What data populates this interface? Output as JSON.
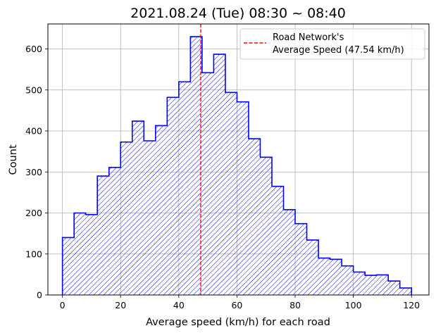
{
  "chart_data": {
    "type": "histogram",
    "title": "2021.08.24 (Tue) 08:30 ~ 08:40",
    "xlabel": "Average speed (km/h) for each road",
    "ylabel": "Count",
    "xlim": [
      -5,
      126
    ],
    "ylim": [
      0,
      661
    ],
    "xticks": [
      0,
      20,
      40,
      60,
      80,
      100,
      120
    ],
    "yticks": [
      0,
      100,
      200,
      300,
      400,
      500,
      600
    ],
    "grid": true,
    "bin_edges": [
      0,
      4,
      8,
      12,
      16,
      20,
      24,
      28,
      32,
      36,
      40,
      44,
      48,
      52,
      56,
      60,
      64,
      68,
      72,
      76,
      80,
      84,
      88,
      92,
      96,
      100,
      104,
      108,
      112,
      116,
      120
    ],
    "counts": [
      140,
      200,
      196,
      290,
      311,
      373,
      424,
      376,
      413,
      482,
      520,
      630,
      542,
      587,
      494,
      471,
      381,
      336,
      265,
      208,
      174,
      134,
      90,
      87,
      71,
      56,
      48,
      49,
      34,
      17
    ],
    "bar_style": {
      "edge_color": "#0000ff",
      "hatch": "////",
      "fill": "none"
    },
    "vline": {
      "x": 47.54,
      "color": "#ff0000",
      "style": "dashed"
    },
    "legend": {
      "position": "top-right",
      "entries": [
        {
          "label_line1": "Road Network's",
          "label_line2": "Average Speed (47.54 km/h)",
          "color": "#ff0000",
          "style": "dashed"
        }
      ]
    }
  }
}
